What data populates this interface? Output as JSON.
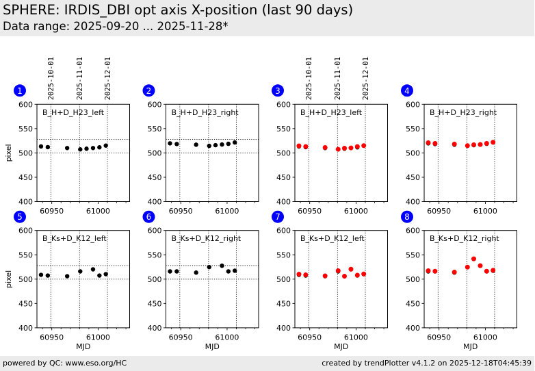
{
  "header": {
    "title": "SPHERE: IRDIS_DBI opt axis X-position (last 90 days)",
    "subtitle": "Data range: 2025-09-20 ... 2025-11-28*"
  },
  "footer": {
    "left": "powered by QC: www.eso.org/HC",
    "right": "created by trendPlotter v4.1.2 on 2025-12-18T04:45:39"
  },
  "chart_data": [
    {
      "id": 1,
      "type": "scatter",
      "title": "B_H+D_H23_left",
      "xlabel": "",
      "ylabel": "pixel",
      "xlim": [
        60934,
        61034
      ],
      "ylim": [
        400,
        600
      ],
      "xticks": [
        60950,
        61000
      ],
      "xminor_step": 10,
      "yticks": [
        400,
        450,
        500,
        550,
        600
      ],
      "vlines": [
        60949,
        60980,
        61010
      ],
      "show_date_labels": true,
      "date_labels": [
        "2025-10-01",
        "2025-11-01",
        "2025-12-01"
      ],
      "hlines": [
        500,
        528
      ],
      "series": [
        {
          "name": "black",
          "color": "#000000",
          "x": [
            60938.4,
            60945.7,
            60966.6,
            60980.7,
            60987.5,
            60994.5,
            61001.4,
            61008.3
          ],
          "y": [
            513.3,
            511.9,
            510.0,
            507.3,
            508.7,
            510.0,
            511.5,
            515.0
          ]
        }
      ]
    },
    {
      "id": 2,
      "type": "scatter",
      "title": "B_H+D_H23_right",
      "xlabel": "",
      "ylabel": "",
      "xlim": [
        60934,
        61034
      ],
      "ylim": [
        400,
        600
      ],
      "xticks": [
        60950,
        61000
      ],
      "xminor_step": 10,
      "yticks": [
        400,
        450,
        500,
        550,
        600
      ],
      "vlines": [
        60949,
        60980,
        61010
      ],
      "show_date_labels": false,
      "date_labels": [
        "2025-10-01",
        "2025-11-01",
        "2025-12-01"
      ],
      "hlines": [
        500,
        528
      ],
      "series": [
        {
          "name": "black",
          "color": "#000000",
          "x": [
            60938.4,
            60945.7,
            60966.6,
            60980.7,
            60987.5,
            60994.5,
            61001.4,
            61008.3
          ],
          "y": [
            519.7,
            518.3,
            516.9,
            514.5,
            515.9,
            517.3,
            518.7,
            521.5
          ]
        }
      ]
    },
    {
      "id": 3,
      "type": "scatter",
      "title": "B_H+D_H23_left",
      "xlabel": "",
      "ylabel": "",
      "xlim": [
        60934,
        61034
      ],
      "ylim": [
        400,
        600
      ],
      "xticks": [
        60950,
        61000
      ],
      "xminor_step": 10,
      "yticks": [
        400,
        450,
        500,
        550,
        600
      ],
      "vlines": [
        60949,
        60980,
        61010
      ],
      "show_date_labels": true,
      "date_labels": [
        "2025-10-01",
        "2025-11-01",
        "2025-12-01"
      ],
      "hlines": [],
      "series": [
        {
          "name": "black",
          "color": "#000000",
          "x": [
            60938.4,
            60945.7,
            60966.6,
            60980.7,
            60987.5,
            60994.5,
            61001.4,
            61008.3
          ],
          "y": [
            513.3,
            511.9,
            510.0,
            507.3,
            508.7,
            510.0,
            511.5,
            515.0
          ]
        },
        {
          "name": "red",
          "color": "#ff0000",
          "x": [
            60938.4,
            60945.7,
            60966.6,
            60980.7,
            60987.5,
            60994.5,
            61001.4,
            61008.3
          ],
          "y": [
            514.5,
            513.1,
            511.1,
            507.5,
            509.7,
            510.3,
            513.1,
            514.9
          ]
        }
      ]
    },
    {
      "id": 4,
      "type": "scatter",
      "title": "B_H+D_H23_right",
      "xlabel": "",
      "ylabel": "",
      "xlim": [
        60934,
        61034
      ],
      "ylim": [
        400,
        600
      ],
      "xticks": [
        60950,
        61000
      ],
      "xminor_step": 10,
      "yticks": [
        400,
        450,
        500,
        550,
        600
      ],
      "vlines": [
        60949,
        60980,
        61010
      ],
      "show_date_labels": false,
      "date_labels": [
        "2025-10-01",
        "2025-11-01",
        "2025-12-01"
      ],
      "hlines": [],
      "series": [
        {
          "name": "black",
          "color": "#000000",
          "x": [
            60938.4,
            60945.7,
            60966.6,
            60980.7,
            60987.5,
            60994.5,
            61001.4,
            61008.3
          ],
          "y": [
            519.7,
            518.3,
            516.9,
            514.5,
            515.9,
            517.3,
            518.7,
            521.5
          ]
        },
        {
          "name": "red",
          "color": "#ff0000",
          "x": [
            60938.4,
            60945.7,
            60966.6,
            60980.7,
            60987.5,
            60994.5,
            61001.4,
            61008.3
          ],
          "y": [
            521.0,
            519.6,
            518.2,
            514.9,
            516.8,
            517.3,
            519.6,
            521.9
          ]
        }
      ]
    },
    {
      "id": 5,
      "type": "scatter",
      "title": "B_Ks+D_K12_left",
      "xlabel": "MJD",
      "ylabel": "pixel",
      "xlim": [
        60934,
        61034
      ],
      "ylim": [
        400,
        600
      ],
      "xticks": [
        60950,
        61000
      ],
      "xminor_step": 10,
      "yticks": [
        400,
        450,
        500,
        550,
        600
      ],
      "vlines": [
        60949,
        60980,
        61010
      ],
      "show_date_labels": false,
      "date_labels": [
        "2025-10-01",
        "2025-11-01",
        "2025-12-01"
      ],
      "hlines": [
        500,
        528
      ],
      "series": [
        {
          "name": "black",
          "color": "#000000",
          "x": [
            60938.4,
            60945.7,
            60966.6,
            60980.7,
            60994.5,
            61001.4,
            61008.3
          ],
          "y": [
            508.8,
            507.4,
            506.0,
            515.9,
            520.1,
            507.4,
            510.2
          ]
        }
      ]
    },
    {
      "id": 6,
      "type": "scatter",
      "title": "B_Ks+D_K12_right",
      "xlabel": "MJD",
      "ylabel": "",
      "xlim": [
        60934,
        61034
      ],
      "ylim": [
        400,
        600
      ],
      "xticks": [
        60950,
        61000
      ],
      "xminor_step": 10,
      "yticks": [
        400,
        450,
        500,
        550,
        600
      ],
      "vlines": [
        60949,
        60980,
        61010
      ],
      "show_date_labels": false,
      "date_labels": [
        "2025-10-01",
        "2025-11-01",
        "2025-12-01"
      ],
      "hlines": [
        500,
        528
      ],
      "series": [
        {
          "name": "black",
          "color": "#000000",
          "x": [
            60938.4,
            60945.7,
            60966.6,
            60980.7,
            60994.5,
            61001.4,
            61008.3
          ],
          "y": [
            515.9,
            515.9,
            513.5,
            524.8,
            527.6,
            515.9,
            517.3
          ]
        }
      ]
    },
    {
      "id": 7,
      "type": "scatter",
      "title": "B_Ks+D_K12_left",
      "xlabel": "MJD",
      "ylabel": "",
      "xlim": [
        60934,
        61034
      ],
      "ylim": [
        400,
        600
      ],
      "xticks": [
        60950,
        61000
      ],
      "xminor_step": 10,
      "yticks": [
        400,
        450,
        500,
        550,
        600
      ],
      "vlines": [
        60949,
        60980,
        61010
      ],
      "show_date_labels": false,
      "date_labels": [
        "2025-10-01",
        "2025-11-01",
        "2025-12-01"
      ],
      "hlines": [],
      "series": [
        {
          "name": "black",
          "color": "#000000",
          "x": [
            60938.4,
            60945.7,
            60966.6,
            60980.7,
            60994.5,
            61001.4,
            61008.3
          ],
          "y": [
            508.8,
            507.4,
            506.0,
            515.9,
            520.1,
            507.4,
            510.2
          ]
        },
        {
          "name": "red",
          "color": "#ff0000",
          "x": [
            60938.4,
            60945.7,
            60966.6,
            60980.7,
            60987.5,
            60994.5,
            61001.4,
            61008.3
          ],
          "y": [
            510.2,
            508.8,
            506.8,
            517.3,
            506.0,
            520.5,
            508.2,
            510.6
          ]
        }
      ]
    },
    {
      "id": 8,
      "type": "scatter",
      "title": "B_Ks+D_K12_right",
      "xlabel": "MJD",
      "ylabel": "",
      "xlim": [
        60934,
        61034
      ],
      "ylim": [
        400,
        600
      ],
      "xticks": [
        60950,
        61000
      ],
      "xminor_step": 10,
      "yticks": [
        400,
        450,
        500,
        550,
        600
      ],
      "vlines": [
        60949,
        60980,
        61010
      ],
      "show_date_labels": false,
      "date_labels": [
        "2025-10-01",
        "2025-11-01",
        "2025-12-01"
      ],
      "hlines": [],
      "series": [
        {
          "name": "black",
          "color": "#000000",
          "x": [
            60938.4,
            60945.7,
            60966.6,
            60980.7,
            60994.5,
            61001.4,
            61008.3
          ],
          "y": [
            515.9,
            515.9,
            513.5,
            524.8,
            527.6,
            515.9,
            517.3
          ]
        },
        {
          "name": "red",
          "color": "#ff0000",
          "x": [
            60938.4,
            60945.7,
            60966.6,
            60980.7,
            60987.5,
            60994.5,
            61001.4,
            61008.3
          ],
          "y": [
            517.3,
            516.3,
            514.4,
            524.7,
            541.7,
            527.6,
            516.3,
            518.1
          ]
        }
      ]
    }
  ],
  "badge_color": "#0000ff"
}
